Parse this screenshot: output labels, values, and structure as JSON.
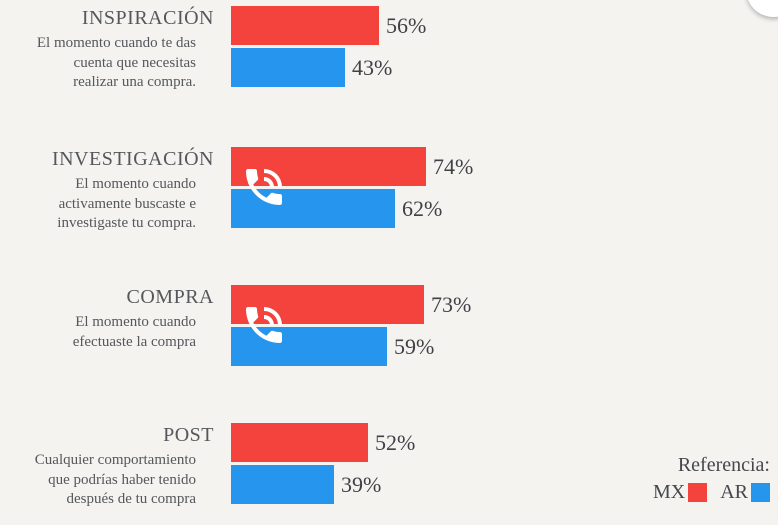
{
  "page": {
    "background": "#f4f3f0"
  },
  "colors": {
    "mx": "#f4433c",
    "ar": "#2595ee",
    "label_text": "#55575c",
    "value_text": "#3f4147"
  },
  "sections": [
    {
      "title": "INSPIRACIÓN",
      "desc": "El momento cuando te das\ncuenta que necesitas\nrealizar una compra.",
      "mx": 56,
      "ar": 43,
      "mx_label": "56%",
      "ar_label": "43%",
      "phone_icon": false
    },
    {
      "title": "INVESTIGACIÓN",
      "desc": "El momento cuando\nactivamente buscaste e\ninvestigaste tu compra.",
      "mx": 74,
      "ar": 62,
      "mx_label": "74%",
      "ar_label": "62%",
      "phone_icon": true
    },
    {
      "title": "COMPRA",
      "desc": "El momento cuando\nefectuaste la compra",
      "mx": 73,
      "ar": 59,
      "mx_label": "73%",
      "ar_label": "59%",
      "phone_icon": true
    },
    {
      "title": "POST",
      "desc": "Cualquier comportamiento\nque podrías haber tenido\ndespués de tu compra",
      "mx": 52,
      "ar": 39,
      "mx_label": "52%",
      "ar_label": "39%",
      "phone_icon": false
    }
  ],
  "legend": {
    "title": "Referencia:",
    "items": [
      {
        "label": "MX",
        "color": "#f4433c"
      },
      {
        "label": "AR",
        "color": "#2595ee"
      }
    ]
  },
  "chart_data": {
    "type": "bar",
    "orientation": "horizontal",
    "categories": [
      "INSPIRACIÓN",
      "INVESTIGACIÓN",
      "COMPRA",
      "POST"
    ],
    "category_descriptions": [
      "El momento cuando te das cuenta que necesitas realizar una compra.",
      "El momento cuando activamente buscaste e investigaste tu compra.",
      "El momento cuando efectuaste la compra",
      "Cualquier comportamiento que podrías haber tenido después de tu compra"
    ],
    "series": [
      {
        "name": "MX",
        "color": "#f4433c",
        "values": [
          56,
          74,
          73,
          52
        ]
      },
      {
        "name": "AR",
        "color": "#2595ee",
        "values": [
          43,
          62,
          59,
          39
        ]
      }
    ],
    "value_suffix": "%",
    "xlim": [
      0,
      100
    ],
    "grid": false,
    "legend_title": "Referencia:",
    "legend_position": "bottom-right",
    "annotations": [
      "white phone-in-talk icon overlaid on the INVESTIGACIÓN and COMPRA bar pairs"
    ]
  }
}
